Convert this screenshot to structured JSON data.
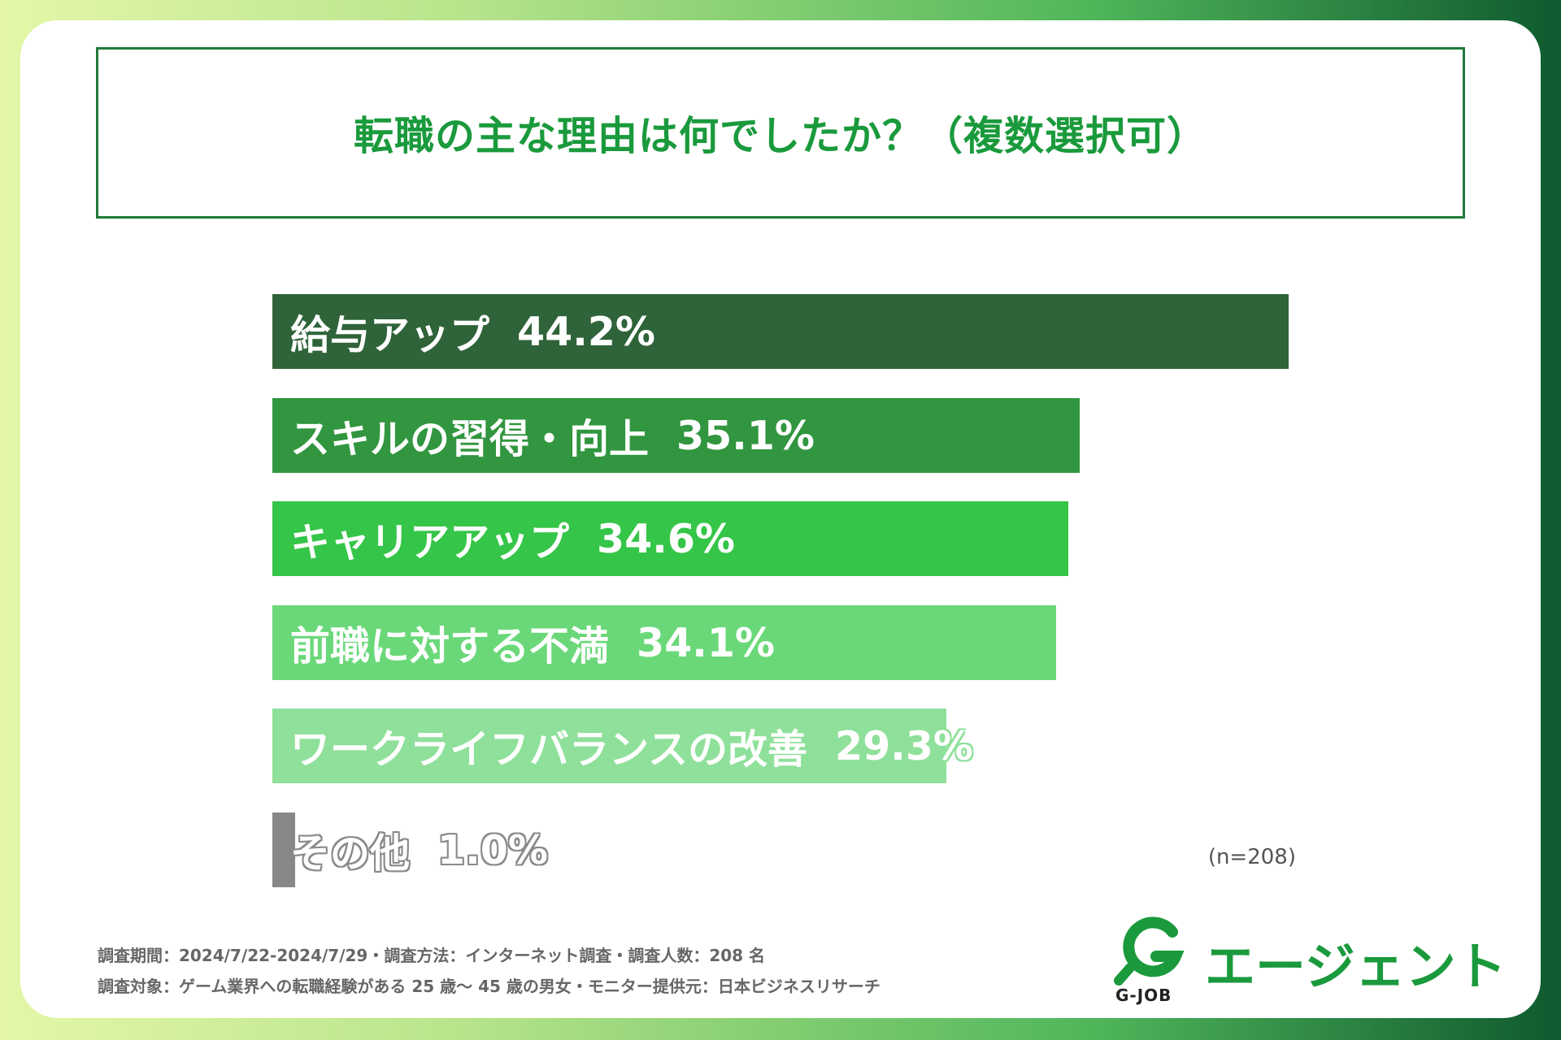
{
  "title": "転職の主な理由は何でしたか？（複数選択可）",
  "chart_data": {
    "type": "bar",
    "orientation": "horizontal",
    "title": "転職の主な理由は何でしたか？（複数選択可）",
    "categories": [
      "給与アップ",
      "スキルの習得・向上",
      "キャリアアップ",
      "前職に対する不満",
      "ワークライフバランスの改善",
      "その他"
    ],
    "values": [
      44.2,
      35.1,
      34.6,
      34.1,
      29.3,
      1.0
    ],
    "value_labels": [
      "44.2%",
      "35.1%",
      "34.6%",
      "34.1%",
      "29.3%",
      "1.0%"
    ],
    "colors": [
      "#2f6339",
      "#31963f",
      "#35c548",
      "#6ad879",
      "#8fe09a",
      "#888888"
    ],
    "xlim": [
      0,
      44.2
    ],
    "note": "(n=208)"
  },
  "footnotes": [
    "調査期間：2024/7/22-2024/7/29・調査方法：インターネット調査・調査人数：208 名",
    "調査対象：ゲーム業界への転職経験がある 25 歳～ 45 歳の男女・モニター提供元：日本ビジネスリサーチ"
  ],
  "logo": {
    "mark": "G",
    "brand": "G-JOB",
    "agent": "エージェント",
    "color": "#1a9a3c"
  }
}
